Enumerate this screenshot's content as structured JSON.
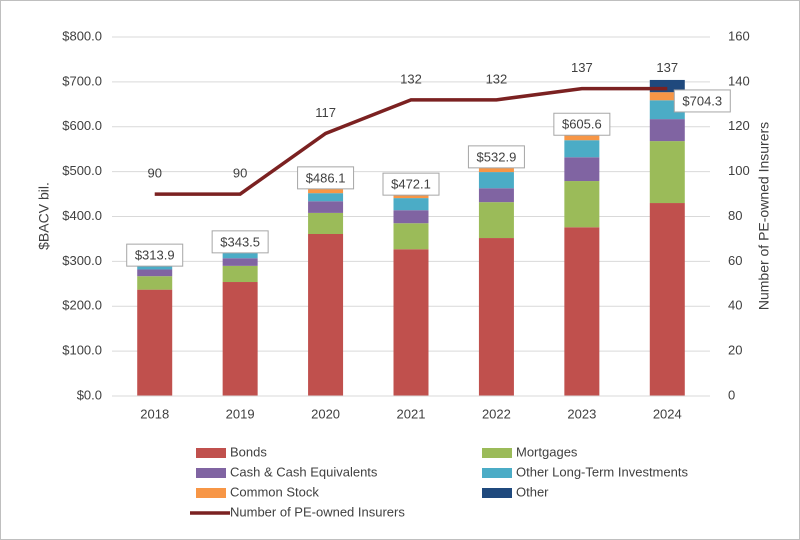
{
  "chart_data": {
    "type": "stacked-bar-line",
    "categories": [
      "2018",
      "2019",
      "2020",
      "2021",
      "2022",
      "2023",
      "2024"
    ],
    "series": [
      {
        "name": "Bonds",
        "color": "#c0504d",
        "values": [
          237,
          254,
          361,
          327,
          352,
          376,
          430
        ]
      },
      {
        "name": "Mortgages",
        "color": "#9bbb59",
        "values": [
          30,
          36,
          47,
          58,
          80,
          103,
          138
        ]
      },
      {
        "name": "Cash & Cash Equivalents",
        "color": "#8064a2",
        "values": [
          15,
          17,
          26,
          29,
          31,
          53,
          49
        ]
      },
      {
        "name": "Other Long-Term Investments",
        "color": "#4bacc6",
        "values": [
          8,
          15,
          18,
          27,
          36,
          38,
          42
        ]
      },
      {
        "name": "Common Stock",
        "color": "#f79646",
        "values": [
          4,
          6,
          10,
          13,
          13,
          12,
          18
        ]
      },
      {
        "name": "Other",
        "color": "#1f497d",
        "values": [
          19.9,
          15.5,
          24.1,
          18.1,
          20.9,
          23.6,
          27.3
        ]
      },
      {
        "name": "Number of PE-owned Insurers",
        "color": "#7b2121",
        "axis": "y2",
        "values": [
          90,
          90,
          117,
          132,
          132,
          137,
          137
        ]
      }
    ],
    "totals": {
      "values": [
        313.9,
        343.5,
        486.1,
        472.1,
        532.9,
        605.6,
        704.3
      ],
      "value_labels": [
        "$313.9",
        "$343.5",
        "$486.1",
        "$472.1",
        "$532.9",
        "$605.6",
        "$704.3"
      ]
    },
    "y_label": "$BACV bil.",
    "y2_label": "Number of PE-owned Insurers",
    "ylim": [
      0,
      800
    ],
    "yticks": [
      {
        "value": 0,
        "label": "$0.0"
      },
      {
        "value": 100,
        "label": "$100.0"
      },
      {
        "value": 200,
        "label": "$200.0"
      },
      {
        "value": 300,
        "label": "$300.0"
      },
      {
        "value": 400,
        "label": "$400.0"
      },
      {
        "value": 500,
        "label": "$500.0"
      },
      {
        "value": 600,
        "label": "$600.0"
      },
      {
        "value": 700,
        "label": "$700.0"
      },
      {
        "value": 800,
        "label": "$800.0"
      }
    ],
    "y2lim": [
      0,
      160
    ],
    "y2ticks": [
      0,
      20,
      40,
      60,
      80,
      100,
      120,
      140,
      160
    ],
    "grid": true
  }
}
